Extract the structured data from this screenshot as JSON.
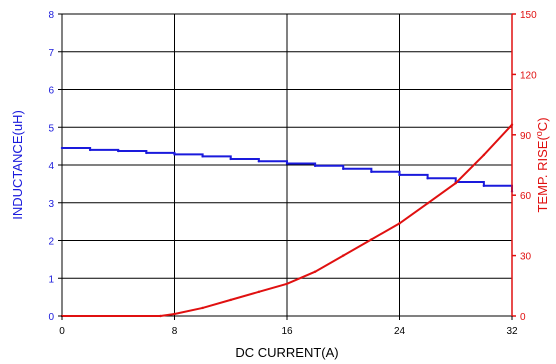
{
  "chart_data": {
    "type": "line",
    "xlabel": "DC CURRENT(A)",
    "ylabel_left": "INDUCTANCE(uH)",
    "ylabel_right_prefix": "TEMP. RISE(",
    "ylabel_right_sup": "o",
    "ylabel_right_suffix": "C)",
    "xlim": [
      0,
      32
    ],
    "ylim_left": [
      0,
      8
    ],
    "ylim_right": [
      0,
      150
    ],
    "x_ticks": [
      "0",
      "8",
      "16",
      "24",
      "32"
    ],
    "y_left_ticks": [
      "0",
      "1",
      "2",
      "3",
      "4",
      "5",
      "6",
      "7",
      "8"
    ],
    "y_right_ticks": [
      "0",
      "30",
      "60",
      "90",
      "120",
      "150"
    ],
    "grid": true,
    "colors": {
      "inductance": "#1a1adc",
      "temp_rise": "#e01010",
      "right_axis": "#e01010",
      "left_axis_label": "#1a1adc",
      "grid": "#000000"
    },
    "series": [
      {
        "axis": "left",
        "x": [
          0,
          2,
          4,
          6,
          8,
          10,
          12,
          14,
          16,
          18,
          20,
          22,
          24,
          26,
          28,
          30,
          32
        ],
        "y": [
          4.45,
          4.4,
          4.37,
          4.32,
          4.28,
          4.23,
          4.16,
          4.1,
          4.04,
          3.98,
          3.9,
          3.82,
          3.74,
          3.65,
          3.55,
          3.45,
          3.3
        ]
      },
      {
        "axis": "right",
        "x": [
          0,
          7,
          8,
          10,
          12,
          14,
          16,
          18,
          20,
          22,
          24,
          26,
          28,
          30,
          32
        ],
        "y": [
          0,
          0,
          1,
          4,
          8,
          12,
          16,
          22,
          30,
          38,
          46,
          56,
          66,
          80,
          95
        ]
      }
    ]
  }
}
